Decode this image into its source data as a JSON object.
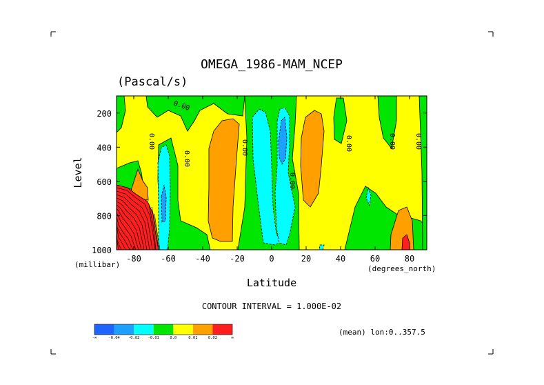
{
  "title": "OMEGA_1986-MAM_NCEP",
  "units": "(Pascal/s)",
  "xlabel": "Latitude",
  "ylabel": "Level",
  "y_units_label": "(millibar)",
  "x_units_label": "(degrees_north)",
  "contour_interval_text": "CONTOUR INTERVAL = 1.000E-02",
  "mean_text": "(mean) lon:0..357.5",
  "colors": {
    "c_dark_blue": "#1e64ff",
    "c_blue": "#1ea0ff",
    "c_cyan": "#00ffff",
    "c_green": "#00e600",
    "c_yellow": "#ffff00",
    "c_orange": "#ffa000",
    "c_red": "#ff1e1e"
  },
  "chart_data": {
    "type": "contour",
    "x_axis": {
      "name": "Latitude",
      "units": "degrees_north",
      "range": [
        -90,
        90
      ],
      "ticks": [
        -80,
        -60,
        -40,
        -20,
        0,
        20,
        40,
        60,
        80
      ]
    },
    "y_axis": {
      "name": "Level",
      "units": "millibar",
      "range": [
        1000,
        100
      ],
      "inverted": true,
      "ticks": [
        1000,
        800,
        600,
        400,
        200
      ]
    },
    "contour_interval": 0.01,
    "contour_labels": [
      "0.00",
      "0.00",
      "0.00",
      "0.00",
      "0.00",
      "0.00",
      "0.00",
      "0.00"
    ],
    "colorbar": {
      "bins": [
        {
          "color": "#1e64ff"
        },
        {
          "color": "#1ea0ff"
        },
        {
          "color": "#00ffff"
        },
        {
          "color": "#00e600"
        },
        {
          "color": "#ffff00"
        },
        {
          "color": "#ffa000"
        },
        {
          "color": "#ff1e1e"
        }
      ],
      "labels": [
        "-∞",
        "-0.04",
        "-0.02",
        "-0.01",
        "0.0",
        "0.01",
        "0.02",
        "∞"
      ]
    },
    "regions": [
      {
        "lat": [
          -90,
          -86
        ],
        "lev": [
          100,
          300
        ],
        "value_class": "green"
      },
      {
        "lat": [
          -84,
          -70
        ],
        "lev": [
          100,
          200
        ],
        "value_class": "green"
      },
      {
        "lat": [
          -90,
          -76
        ],
        "lev": [
          480,
          630
        ],
        "value_class": "green"
      },
      {
        "lat": [
          -90,
          -73
        ],
        "lev": [
          630,
          1000
        ],
        "value_class": "red"
      },
      {
        "lat": [
          -68,
          -62
        ],
        "lev": [
          420,
          1000
        ],
        "value_class": "cyan"
      },
      {
        "lat": [
          -66,
          -63
        ],
        "lev": [
          600,
          900
        ],
        "value_class": "blue"
      },
      {
        "lat": [
          -57,
          -40
        ],
        "lev": [
          500,
          1000
        ],
        "value_class": "green"
      },
      {
        "lat": [
          -32,
          -14
        ],
        "lev": [
          280,
          960
        ],
        "value_class": "orange"
      },
      {
        "lat": [
          -12,
          0
        ],
        "lev": [
          170,
          960
        ],
        "value_class": "cyan"
      },
      {
        "lat": [
          1,
          6
        ],
        "lev": [
          180,
          440
        ],
        "value_class": "blue"
      },
      {
        "lat": [
          14,
          27
        ],
        "lev": [
          180,
          710
        ],
        "value_class": "orange"
      },
      {
        "lat": [
          33,
          37
        ],
        "lev": [
          100,
          400
        ],
        "value_class": "green"
      },
      {
        "lat": [
          53,
          57
        ],
        "lev": [
          600,
          700
        ],
        "value_class": "cyan"
      },
      {
        "lat": [
          68,
          80
        ],
        "lev": [
          700,
          1000
        ],
        "value_class": "orange"
      },
      {
        "lat": [
          77,
          80
        ],
        "lev": [
          920,
          1000
        ],
        "value_class": "red"
      }
    ]
  }
}
